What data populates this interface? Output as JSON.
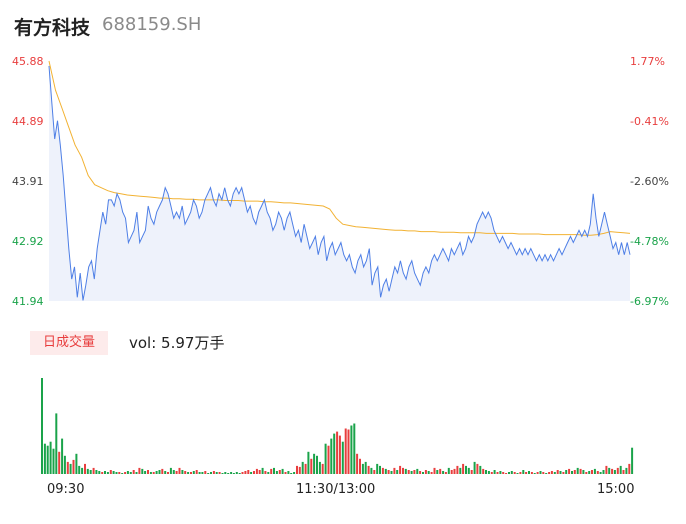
{
  "header": {
    "name": "有方科技",
    "code": "688159.SH"
  },
  "volume_panel": {
    "badge": "日成交量",
    "summary": "vol: 5.97万手"
  },
  "colors": {
    "price": "#4e7fe6",
    "avg": "#f2b233",
    "up": "#e83e3e",
    "down": "#1aa34a",
    "area": "#eef2fb"
  },
  "chart_data": [
    {
      "type": "line",
      "y_left_ticks": [
        "45.88",
        "44.89",
        "43.91",
        "42.92",
        "41.94"
      ],
      "y_right_ticks": [
        "1.77%",
        "-0.41%",
        "-2.60%",
        "-4.78%",
        "-6.97%"
      ],
      "ylim": [
        41.94,
        45.88
      ],
      "x_ticks": [
        "09:30",
        "11:30/13:00",
        "15:00"
      ],
      "series": [
        {
          "values": [
            45.8,
            45.2,
            44.6,
            44.9,
            44.5,
            44.0,
            43.4,
            42.8,
            42.3,
            42.5,
            42.0,
            42.4,
            41.95,
            42.2,
            42.5,
            42.6,
            42.3,
            42.8,
            43.1,
            43.4,
            43.2,
            43.6,
            43.6,
            43.5,
            43.7,
            43.6,
            43.4,
            43.3,
            42.9,
            43.0,
            43.1,
            43.4,
            42.9,
            43.0,
            43.1,
            43.5,
            43.3,
            43.2,
            43.4,
            43.5,
            43.6,
            43.8,
            43.7,
            43.5,
            43.3,
            43.4,
            43.3,
            43.5,
            43.2,
            43.3,
            43.4,
            43.6,
            43.5,
            43.3,
            43.4,
            43.6,
            43.7,
            43.8,
            43.6,
            43.5,
            43.7,
            43.6,
            43.8,
            43.6,
            43.5,
            43.7,
            43.8,
            43.7,
            43.8,
            43.6,
            43.4,
            43.5,
            43.3,
            43.2,
            43.4,
            43.5,
            43.6,
            43.4,
            43.3,
            43.1,
            43.2,
            43.4,
            43.3,
            43.1,
            43.3,
            43.4,
            43.2,
            43.0,
            43.1,
            42.9,
            43.2,
            43.0,
            42.8,
            42.9,
            43.0,
            42.7,
            42.9,
            43.0,
            42.6,
            42.8,
            42.9,
            42.7,
            42.8,
            42.9,
            42.7,
            42.6,
            42.7,
            42.5,
            42.4,
            42.6,
            42.7,
            42.5,
            42.6,
            42.8,
            42.2,
            42.4,
            42.5,
            42.0,
            42.2,
            42.3,
            42.1,
            42.3,
            42.5,
            42.4,
            42.6,
            42.4,
            42.3,
            42.5,
            42.6,
            42.4,
            42.3,
            42.2,
            42.4,
            42.5,
            42.4,
            42.6,
            42.7,
            42.6,
            42.7,
            42.8,
            42.7,
            42.6,
            42.8,
            42.7,
            42.8,
            42.9,
            42.7,
            42.8,
            43.0,
            42.9,
            43.0,
            43.2,
            43.3,
            43.4,
            43.3,
            43.4,
            43.3,
            43.1,
            43.0,
            42.9,
            43.0,
            42.9,
            42.8,
            42.9,
            42.8,
            42.7,
            42.8,
            42.7,
            42.8,
            42.7,
            42.8,
            42.7,
            42.6,
            42.7,
            42.6,
            42.7,
            42.6,
            42.7,
            42.6,
            42.7,
            42.8,
            42.7,
            42.8,
            42.9,
            43.0,
            42.9,
            43.0,
            43.1,
            43.0,
            43.1,
            43.0,
            43.2,
            43.7,
            43.3,
            43.0,
            43.2,
            43.4,
            43.2,
            43.0,
            42.8,
            42.9,
            42.7,
            42.9,
            42.7,
            42.9,
            42.7
          ]
        },
        {
          "values": [
            45.88,
            45.4,
            45.1,
            44.8,
            44.5,
            44.3,
            44.0,
            43.85,
            43.8,
            43.75,
            43.72,
            43.7,
            43.68,
            43.67,
            43.66,
            43.65,
            43.64,
            43.63,
            43.63,
            43.62,
            43.62,
            43.61,
            43.61,
            43.6,
            43.6,
            43.6,
            43.6,
            43.59,
            43.59,
            43.59,
            43.58,
            43.58,
            43.58,
            43.57,
            43.57,
            43.56,
            43.55,
            43.55,
            43.54,
            43.53,
            43.52,
            43.51,
            43.5,
            43.45,
            43.3,
            43.2,
            43.18,
            43.16,
            43.15,
            43.14,
            43.13,
            43.12,
            43.11,
            43.1,
            43.1,
            43.09,
            43.09,
            43.08,
            43.08,
            43.08,
            43.07,
            43.07,
            43.07,
            43.06,
            43.06,
            43.06,
            43.06,
            43.05,
            43.05,
            43.05,
            43.05,
            43.05,
            43.04,
            43.04,
            43.04,
            43.04,
            43.03,
            43.03,
            43.03,
            43.03,
            43.03,
            43.03,
            43.02,
            43.02,
            43.03,
            43.05,
            43.08,
            43.07,
            43.06,
            43.05
          ]
        }
      ]
    },
    {
      "type": "bar",
      "colors_sequence": [
        "d",
        "d",
        "d",
        "d",
        "d",
        "d",
        "u",
        "d",
        "d",
        "u",
        "d",
        "u",
        "d",
        "d",
        "d",
        "u",
        "d",
        "d",
        "u",
        "d",
        "d",
        "u",
        "d",
        "d",
        "u",
        "d",
        "d",
        "u",
        "d",
        "u",
        "d",
        "d",
        "u",
        "d",
        "u",
        "d",
        "d",
        "u",
        "d",
        "u",
        "d",
        "d",
        "u",
        "d",
        "u",
        "d",
        "d",
        "u",
        "u",
        "d",
        "u",
        "d",
        "u",
        "d",
        "u",
        "d",
        "d",
        "u",
        "d",
        "d",
        "u",
        "d",
        "u",
        "d",
        "d",
        "d",
        "d",
        "d",
        "d",
        "d",
        "u",
        "u",
        "u",
        "d",
        "u",
        "u",
        "u",
        "d",
        "u",
        "d",
        "u",
        "d",
        "d",
        "u",
        "d",
        "u",
        "d",
        "d",
        "d",
        "u",
        "u",
        "d",
        "u",
        "d",
        "u",
        "d",
        "d",
        "d",
        "u",
        "d",
        "u",
        "d",
        "d",
        "u",
        "u",
        "d",
        "u",
        "u",
        "d",
        "d",
        "u",
        "u",
        "d",
        "d",
        "u",
        "d",
        "u",
        "d",
        "d",
        "u",
        "d",
        "u",
        "d",
        "u",
        "d",
        "u",
        "u",
        "d",
        "u",
        "d",
        "u",
        "d",
        "u",
        "d",
        "u",
        "d",
        "u",
        "u",
        "d",
        "u",
        "d",
        "u",
        "d",
        "u",
        "u",
        "u",
        "d",
        "u",
        "d",
        "d",
        "u",
        "d",
        "u",
        "d",
        "u",
        "d",
        "d",
        "u",
        "d",
        "u",
        "d",
        "u",
        "u",
        "d",
        "d",
        "u",
        "d",
        "u",
        "d",
        "u",
        "d",
        "u",
        "d",
        "u",
        "d",
        "u",
        "d",
        "u",
        "u",
        "d",
        "u",
        "d",
        "u",
        "d",
        "u",
        "d",
        "u",
        "d",
        "u",
        "d",
        "u",
        "d",
        "u",
        "d",
        "u",
        "d",
        "d",
        "u",
        "d",
        "u",
        "d",
        "u",
        "d",
        "u",
        "d",
        "u",
        "d",
        "u"
      ],
      "values": [
        95,
        30,
        28,
        32,
        25,
        60,
        22,
        35,
        18,
        12,
        10,
        14,
        20,
        8,
        6,
        10,
        5,
        4,
        6,
        4,
        3,
        2,
        3,
        2,
        4,
        3,
        2,
        2,
        1,
        2,
        3,
        2,
        4,
        2,
        6,
        5,
        3,
        4,
        2,
        2,
        3,
        4,
        5,
        3,
        2,
        6,
        4,
        3,
        6,
        4,
        3,
        2,
        2,
        3,
        4,
        2,
        2,
        3,
        1,
        2,
        3,
        2,
        2,
        1,
        2,
        1,
        2,
        1,
        2,
        1,
        2,
        3,
        4,
        2,
        3,
        5,
        4,
        6,
        3,
        2,
        5,
        6,
        3,
        4,
        5,
        2,
        3,
        1,
        2,
        8,
        7,
        12,
        10,
        22,
        15,
        20,
        18,
        12,
        10,
        30,
        28,
        35,
        40,
        42,
        38,
        32,
        45,
        44,
        48,
        50,
        20,
        15,
        10,
        12,
        8,
        6,
        4,
        10,
        8,
        6,
        5,
        4,
        3,
        6,
        4,
        8,
        6,
        5,
        4,
        3,
        4,
        5,
        3,
        2,
        4,
        3,
        2,
        6,
        4,
        5,
        3,
        2,
        6,
        4,
        5,
        8,
        6,
        10,
        8,
        6,
        4,
        12,
        10,
        8,
        5,
        4,
        3,
        2,
        4,
        2,
        3,
        2,
        1,
        2,
        3,
        2,
        1,
        2,
        4,
        2,
        3,
        2,
        1,
        2,
        3,
        2,
        1,
        2,
        3,
        2,
        4,
        3,
        2,
        4,
        5,
        3,
        4,
        6,
        5,
        4,
        2,
        3,
        4,
        5,
        3,
        2,
        4,
        8,
        6,
        5,
        4,
        6,
        8,
        4,
        6,
        10,
        26
      ]
    }
  ]
}
